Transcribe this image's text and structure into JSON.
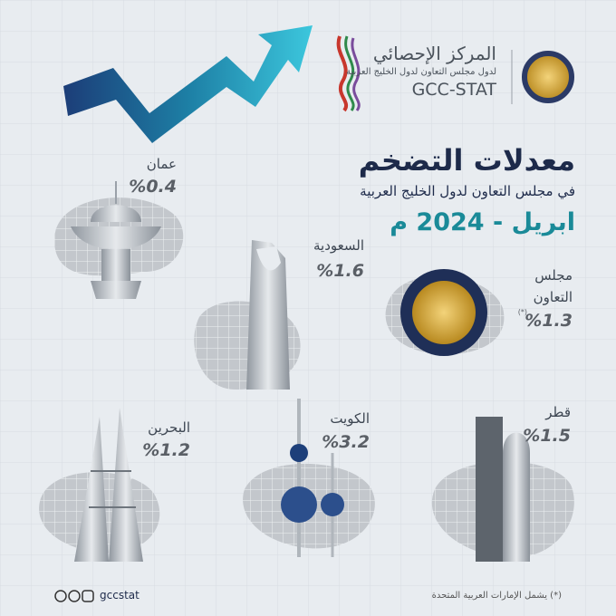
{
  "header": {
    "org_name_ar": "المركز الإحصائي",
    "org_subtitle_ar": "لدول مجلس التعاون لدول الخليج العربية",
    "org_name_en": "GCC-STAT"
  },
  "title": "معدلات التضخم",
  "subtitle": "في مجلس التعاون لدول الخليج العربية",
  "period": "ابريل - 2024 م",
  "countries": [
    {
      "name": "عمان",
      "value": "%0.4"
    },
    {
      "name": "السعودية",
      "value": "%1.6"
    },
    {
      "name": "مجلس التعاون",
      "value": "%1.3",
      "note": "(*)"
    },
    {
      "name": "البحرين",
      "value": "%1.2"
    },
    {
      "name": "الكويت",
      "value": "%3.2"
    },
    {
      "name": "قطر",
      "value": "%1.5"
    }
  ],
  "footer": {
    "handle": "gccstat",
    "note": "(*) يشمل الإمارات العربية المتحدة"
  }
}
